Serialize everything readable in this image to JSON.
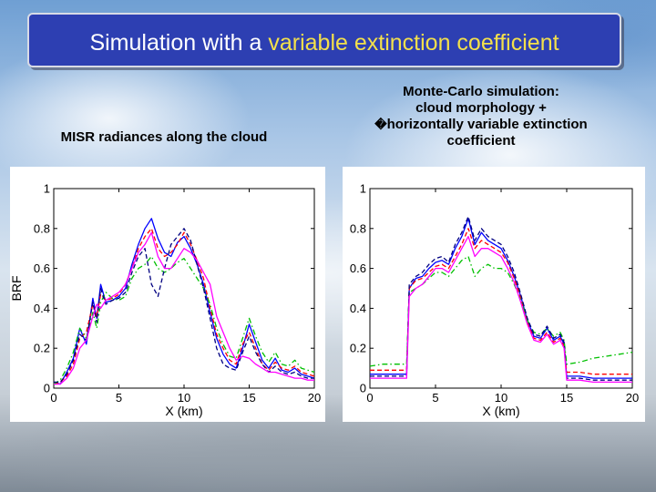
{
  "slide": {
    "title_plain": "Simulation with a ",
    "title_accent": "variable extinction coefficient",
    "accent_color": "#f3e04b",
    "title_bg_color": "#2d3fb2"
  },
  "captions": {
    "left": "MISR radiances along the cloud",
    "right_lines": [
      "Monte-Carlo simulation:",
      "cloud morphology +",
      "horizontally variable extinction",
      "coefficient"
    ],
    "right_bullet": "�"
  },
  "chart_data": [
    {
      "type": "line",
      "title": "",
      "xlabel": "X (km)",
      "ylabel": "BRF",
      "xlim": [
        0,
        20
      ],
      "ylim": [
        0,
        1
      ],
      "xticks": [
        "0",
        "5",
        "10",
        "15",
        "20"
      ],
      "yticks": [
        "0",
        "0.2",
        "0.4",
        "0.6",
        "0.8",
        "1"
      ],
      "grid": false,
      "series": [
        {
          "color": "#0000ff",
          "style": "solid",
          "x": [
            0,
            0.5,
            1,
            1.5,
            2,
            2.5,
            3,
            3.3,
            3.6,
            4,
            4.5,
            5,
            5.5,
            6,
            6.5,
            7,
            7.5,
            8,
            8.5,
            9,
            9.5,
            10,
            10.5,
            11,
            11.5,
            12,
            12.5,
            13,
            13.5,
            14,
            14.5,
            15,
            15.5,
            16,
            16.5,
            17,
            17.5,
            18,
            18.5,
            19,
            19.5,
            20
          ],
          "y": [
            0.03,
            0.02,
            0.08,
            0.15,
            0.3,
            0.22,
            0.45,
            0.35,
            0.52,
            0.43,
            0.44,
            0.46,
            0.5,
            0.62,
            0.72,
            0.8,
            0.85,
            0.75,
            0.68,
            0.66,
            0.73,
            0.76,
            0.7,
            0.62,
            0.52,
            0.38,
            0.25,
            0.17,
            0.12,
            0.1,
            0.2,
            0.32,
            0.23,
            0.14,
            0.1,
            0.15,
            0.09,
            0.08,
            0.1,
            0.07,
            0.06,
            0.05
          ]
        },
        {
          "color": "#ff0000",
          "style": "dashed",
          "x": [
            0,
            0.5,
            1,
            1.5,
            2,
            2.5,
            3,
            3.3,
            3.6,
            4,
            4.5,
            5,
            5.5,
            6,
            6.5,
            7,
            7.5,
            8,
            8.5,
            9,
            9.5,
            10,
            10.5,
            11,
            11.5,
            12,
            12.5,
            13,
            13.5,
            14,
            14.5,
            15,
            15.5,
            16,
            16.5,
            17,
            17.5,
            18,
            18.5,
            19,
            19.5,
            20
          ],
          "y": [
            0.02,
            0.03,
            0.06,
            0.12,
            0.25,
            0.28,
            0.42,
            0.36,
            0.47,
            0.44,
            0.45,
            0.47,
            0.52,
            0.6,
            0.7,
            0.76,
            0.8,
            0.7,
            0.66,
            0.68,
            0.72,
            0.78,
            0.72,
            0.64,
            0.55,
            0.4,
            0.27,
            0.2,
            0.14,
            0.12,
            0.22,
            0.28,
            0.2,
            0.12,
            0.09,
            0.13,
            0.1,
            0.09,
            0.11,
            0.08,
            0.07,
            0.06
          ]
        },
        {
          "color": "#00c000",
          "style": "dash-dot",
          "x": [
            0,
            0.5,
            1,
            1.5,
            2,
            2.5,
            3,
            3.3,
            3.6,
            4,
            4.5,
            5,
            5.5,
            6,
            6.5,
            7,
            7.5,
            8,
            8.5,
            9,
            9.5,
            10,
            10.5,
            11,
            11.5,
            12,
            12.5,
            13,
            13.5,
            14,
            14.5,
            15,
            15.5,
            16,
            16.5,
            17,
            17.5,
            18,
            18.5,
            19,
            19.5,
            20
          ],
          "y": [
            0.02,
            0.04,
            0.1,
            0.18,
            0.3,
            0.25,
            0.38,
            0.3,
            0.43,
            0.48,
            0.45,
            0.44,
            0.46,
            0.55,
            0.6,
            0.62,
            0.66,
            0.6,
            0.58,
            0.6,
            0.63,
            0.65,
            0.6,
            0.55,
            0.5,
            0.42,
            0.3,
            0.22,
            0.16,
            0.15,
            0.25,
            0.35,
            0.26,
            0.18,
            0.13,
            0.18,
            0.12,
            0.11,
            0.14,
            0.1,
            0.09,
            0.08
          ]
        },
        {
          "color": "#000080",
          "style": "dashed",
          "x": [
            0,
            0.5,
            1,
            1.5,
            2,
            2.5,
            3,
            3.3,
            3.6,
            4,
            4.5,
            5,
            5.5,
            6,
            6.5,
            7,
            7.5,
            8,
            8.5,
            9,
            9.5,
            10,
            10.5,
            11,
            11.5,
            12,
            12.5,
            13,
            13.5,
            14,
            14.5,
            15,
            15.5,
            16,
            16.5,
            17,
            17.5,
            18,
            18.5,
            19,
            19.5,
            20
          ],
          "y": [
            0.03,
            0.03,
            0.07,
            0.14,
            0.27,
            0.24,
            0.43,
            0.33,
            0.5,
            0.42,
            0.44,
            0.45,
            0.48,
            0.58,
            0.66,
            0.7,
            0.52,
            0.46,
            0.6,
            0.72,
            0.76,
            0.8,
            0.74,
            0.62,
            0.5,
            0.35,
            0.2,
            0.12,
            0.1,
            0.09,
            0.18,
            0.26,
            0.18,
            0.12,
            0.08,
            0.11,
            0.08,
            0.07,
            0.08,
            0.06,
            0.05,
            0.05
          ]
        },
        {
          "color": "#ff00ff",
          "style": "solid",
          "x": [
            0,
            0.5,
            1,
            1.5,
            2,
            2.5,
            3,
            3.3,
            3.6,
            4,
            4.5,
            5,
            5.5,
            6,
            6.5,
            7,
            7.5,
            8,
            8.5,
            9,
            9.5,
            10,
            10.5,
            11,
            11.5,
            12,
            12.5,
            13,
            13.5,
            14,
            14.5,
            15,
            15.5,
            16,
            16.5,
            17,
            17.5,
            18,
            18.5,
            19,
            19.5,
            20
          ],
          "y": [
            0.02,
            0.02,
            0.05,
            0.1,
            0.2,
            0.24,
            0.36,
            0.42,
            0.4,
            0.44,
            0.46,
            0.48,
            0.52,
            0.6,
            0.68,
            0.72,
            0.78,
            0.66,
            0.6,
            0.6,
            0.65,
            0.7,
            0.68,
            0.64,
            0.58,
            0.52,
            0.36,
            0.28,
            0.2,
            0.14,
            0.16,
            0.15,
            0.12,
            0.1,
            0.08,
            0.08,
            0.07,
            0.06,
            0.05,
            0.05,
            0.04,
            0.04
          ]
        }
      ]
    },
    {
      "type": "line",
      "title": "",
      "xlabel": "X (km)",
      "ylabel": "",
      "xlim": [
        0,
        20
      ],
      "ylim": [
        0,
        1
      ],
      "xticks": [
        "0",
        "5",
        "10",
        "15",
        "20"
      ],
      "yticks": [
        "0",
        "0.2",
        "0.4",
        "0.6",
        "0.8",
        "1"
      ],
      "grid": false,
      "series": [
        {
          "color": "#0000ff",
          "style": "solid",
          "x": [
            0,
            1,
            2,
            2.8,
            3,
            3.5,
            4,
            4.5,
            5,
            5.5,
            6,
            6.5,
            7,
            7.5,
            8,
            8.5,
            9,
            9.5,
            10,
            10.5,
            11,
            11.5,
            12,
            12.5,
            13,
            13.5,
            14,
            14.5,
            14.8,
            15,
            16,
            17,
            18,
            19,
            20
          ],
          "y": [
            0.07,
            0.07,
            0.07,
            0.07,
            0.5,
            0.55,
            0.56,
            0.6,
            0.63,
            0.64,
            0.62,
            0.7,
            0.76,
            0.85,
            0.72,
            0.78,
            0.74,
            0.72,
            0.7,
            0.64,
            0.56,
            0.46,
            0.34,
            0.26,
            0.25,
            0.3,
            0.24,
            0.26,
            0.22,
            0.06,
            0.06,
            0.05,
            0.05,
            0.05,
            0.05
          ]
        },
        {
          "color": "#ff0000",
          "style": "dashed",
          "x": [
            0,
            1,
            2,
            2.8,
            3,
            3.5,
            4,
            4.5,
            5,
            5.5,
            6,
            6.5,
            7,
            7.5,
            8,
            8.5,
            9,
            9.5,
            10,
            10.5,
            11,
            11.5,
            12,
            12.5,
            13,
            13.5,
            14,
            14.5,
            14.8,
            15,
            16,
            17,
            18,
            19,
            20
          ],
          "y": [
            0.09,
            0.09,
            0.09,
            0.09,
            0.5,
            0.54,
            0.55,
            0.58,
            0.61,
            0.62,
            0.6,
            0.66,
            0.72,
            0.8,
            0.7,
            0.74,
            0.72,
            0.7,
            0.68,
            0.63,
            0.55,
            0.45,
            0.33,
            0.25,
            0.24,
            0.28,
            0.23,
            0.25,
            0.21,
            0.08,
            0.08,
            0.07,
            0.07,
            0.07,
            0.07
          ]
        },
        {
          "color": "#00c000",
          "style": "dash-dot",
          "x": [
            0,
            1,
            2,
            2.8,
            3,
            3.5,
            4,
            4.5,
            5,
            5.5,
            6,
            6.5,
            7,
            7.5,
            8,
            8.5,
            9,
            9.5,
            10,
            10.5,
            11,
            11.5,
            12,
            12.5,
            13,
            13.5,
            14,
            14.5,
            14.8,
            15,
            16,
            17,
            18,
            19,
            20
          ],
          "y": [
            0.11,
            0.12,
            0.12,
            0.12,
            0.48,
            0.5,
            0.52,
            0.55,
            0.58,
            0.58,
            0.56,
            0.6,
            0.64,
            0.66,
            0.56,
            0.6,
            0.62,
            0.6,
            0.6,
            0.58,
            0.52,
            0.44,
            0.34,
            0.28,
            0.27,
            0.3,
            0.26,
            0.28,
            0.24,
            0.12,
            0.13,
            0.15,
            0.16,
            0.17,
            0.18
          ]
        },
        {
          "color": "#000080",
          "style": "dashed",
          "x": [
            0,
            1,
            2,
            2.8,
            3,
            3.5,
            4,
            4.5,
            5,
            5.5,
            6,
            6.5,
            7,
            7.5,
            8,
            8.5,
            9,
            9.5,
            10,
            10.5,
            11,
            11.5,
            12,
            12.5,
            13,
            13.5,
            14,
            14.5,
            14.8,
            15,
            16,
            17,
            18,
            19,
            20
          ],
          "y": [
            0.06,
            0.06,
            0.06,
            0.06,
            0.52,
            0.56,
            0.58,
            0.62,
            0.65,
            0.66,
            0.63,
            0.72,
            0.78,
            0.86,
            0.74,
            0.8,
            0.76,
            0.74,
            0.72,
            0.66,
            0.58,
            0.47,
            0.35,
            0.27,
            0.26,
            0.31,
            0.25,
            0.27,
            0.23,
            0.05,
            0.05,
            0.04,
            0.04,
            0.04,
            0.04
          ]
        },
        {
          "color": "#ff00ff",
          "style": "solid",
          "x": [
            0,
            1,
            2,
            2.8,
            3,
            3.5,
            4,
            4.5,
            5,
            5.5,
            6,
            6.5,
            7,
            7.5,
            8,
            8.5,
            9,
            9.5,
            10,
            10.5,
            11,
            11.5,
            12,
            12.5,
            13,
            13.5,
            14,
            14.5,
            14.8,
            15,
            16,
            17,
            18,
            19,
            20
          ],
          "y": [
            0.05,
            0.05,
            0.05,
            0.05,
            0.46,
            0.5,
            0.52,
            0.56,
            0.6,
            0.6,
            0.58,
            0.64,
            0.7,
            0.76,
            0.66,
            0.7,
            0.7,
            0.68,
            0.66,
            0.6,
            0.53,
            0.43,
            0.32,
            0.24,
            0.23,
            0.27,
            0.22,
            0.24,
            0.2,
            0.04,
            0.04,
            0.03,
            0.03,
            0.03,
            0.03
          ]
        }
      ]
    }
  ]
}
